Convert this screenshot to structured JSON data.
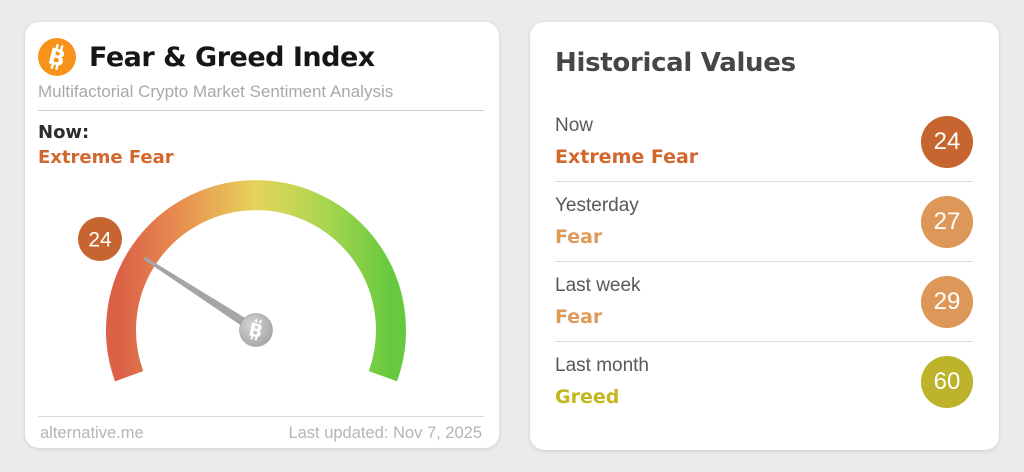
{
  "colors": {
    "bitcoin_orange": "#f7931a",
    "extreme_fear": "#d2672e",
    "fear": "#df9a58",
    "greed": "#c3b61f",
    "badge_now": "#c6652f",
    "circle_fear": "#dd9759",
    "circle_greed": "#bcb32a",
    "gauge_gradient": [
      "#db6247",
      "#e88e50",
      "#e6d45a",
      "#a8d64f",
      "#66c93f"
    ],
    "needle_gray": "#a5a5a5"
  },
  "gauge_card": {
    "title": "Fear & Greed Index",
    "subtitle": "Multifactorial Crypto Market Sentiment Analysis",
    "now_label": "Now:",
    "now_sentiment": "Extreme Fear",
    "gauge": {
      "value": 24,
      "min": 0,
      "max": 100,
      "badge_text": "24"
    },
    "footer": {
      "source": "alternative.me",
      "last_updated": "Last updated: Nov 7, 2025"
    }
  },
  "historical_card": {
    "title": "Historical Values",
    "rows": [
      {
        "label": "Now",
        "sentiment": "Extreme Fear",
        "value": "24",
        "sentiment_color": "#d2672e",
        "circle_color": "#c6652f"
      },
      {
        "label": "Yesterday",
        "sentiment": "Fear",
        "value": "27",
        "sentiment_color": "#df9a58",
        "circle_color": "#dd9759"
      },
      {
        "label": "Last week",
        "sentiment": "Fear",
        "value": "29",
        "sentiment_color": "#df9a58",
        "circle_color": "#dd9759"
      },
      {
        "label": "Last month",
        "sentiment": "Greed",
        "value": "60",
        "sentiment_color": "#c3b61f",
        "circle_color": "#bcb32a"
      }
    ]
  },
  "chart_data": {
    "type": "gauge",
    "title": "Fear & Greed Index",
    "value": 24,
    "range": [
      0,
      100
    ],
    "label": "Extreme Fear",
    "history": {
      "categories": [
        "Now",
        "Yesterday",
        "Last week",
        "Last month"
      ],
      "values": [
        24,
        27,
        29,
        60
      ],
      "labels": [
        "Extreme Fear",
        "Fear",
        "Fear",
        "Greed"
      ]
    }
  }
}
